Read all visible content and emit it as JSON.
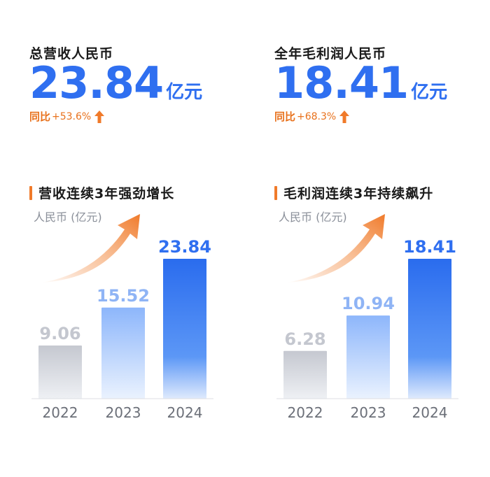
{
  "panels": [
    {
      "metric": {
        "label": "总营收人民币",
        "value": "23.84",
        "unit": "亿元",
        "growth_label": "同比",
        "growth_value": "+53.6%"
      },
      "section_title": "营收连续3年强劲增长",
      "unit_label": "人民币 (亿元)"
    },
    {
      "metric": {
        "label": "全年毛利润人民币",
        "value": "18.41",
        "unit": "亿元",
        "growth_label": "同比",
        "growth_value": "+68.3%"
      },
      "section_title": "毛利润连续3年持续飙升",
      "unit_label": "人民币 (亿元)"
    }
  ],
  "colors": {
    "accent_blue": "#2f6ff0",
    "accent_orange": "#f07a2a",
    "gray_bar": "#c9ccd3",
    "label_gray": "#c4c7cf"
  },
  "chart_data": [
    {
      "type": "bar",
      "title": "营收连续3年强劲增长",
      "ylabel": "人民币 (亿元)",
      "categories": [
        "2022",
        "2023",
        "2024"
      ],
      "values": [
        9.06,
        15.52,
        23.84
      ],
      "value_labels": [
        "9.06",
        "15.52",
        "23.84"
      ],
      "ylim": [
        0,
        25
      ],
      "grid": false
    },
    {
      "type": "bar",
      "title": "毛利润连续3年持续飙升",
      "ylabel": "人民币 (亿元)",
      "categories": [
        "2022",
        "2023",
        "2024"
      ],
      "values": [
        6.28,
        10.94,
        18.41
      ],
      "value_labels": [
        "6.28",
        "10.94",
        "18.41"
      ],
      "ylim": [
        0,
        19
      ],
      "grid": false
    }
  ]
}
